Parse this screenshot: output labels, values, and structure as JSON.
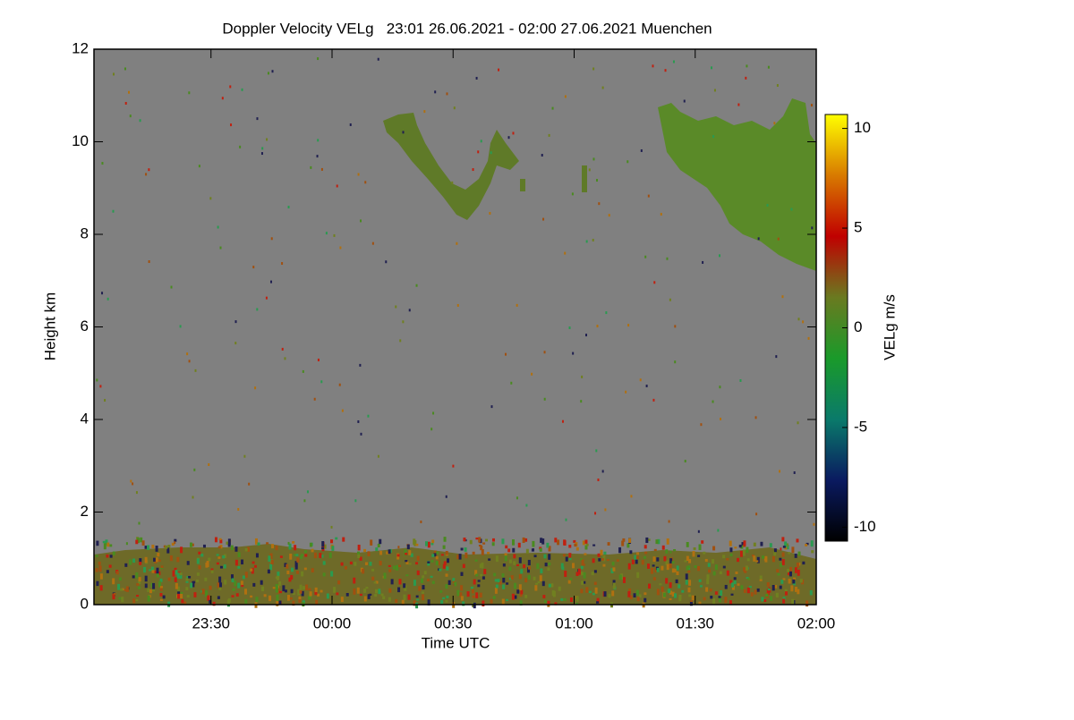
{
  "chart_data": {
    "type": "heatmap",
    "title": "Doppler Velocity VELg   23:01 26.06.2021 - 02:00 27.06.2021 Muenchen",
    "x_label": "Time UTC",
    "y_label": "Height km",
    "xlim": [
      -59,
      120
    ],
    "xticks": [
      {
        "value": -30,
        "label": "23:30"
      },
      {
        "value": 0,
        "label": "00:00"
      },
      {
        "value": 30,
        "label": "00:30"
      },
      {
        "value": 60,
        "label": "01:00"
      },
      {
        "value": 90,
        "label": "01:30"
      },
      {
        "value": 120,
        "label": "02:00"
      }
    ],
    "ylim": [
      0,
      12
    ],
    "yticks": [
      0,
      2,
      4,
      6,
      8,
      10,
      12
    ],
    "colorbar": {
      "label": "VELg m/s",
      "lim": [
        -10.7,
        10.7
      ],
      "ticks": [
        -10,
        -5,
        0,
        5,
        10
      ],
      "colors": [
        "#000000",
        "#0a1a60",
        "#0a7a6a",
        "#1a9a2a",
        "#6a7a20",
        "#c00000",
        "#d87a00",
        "#ffff00"
      ]
    },
    "background": "#808080"
  }
}
